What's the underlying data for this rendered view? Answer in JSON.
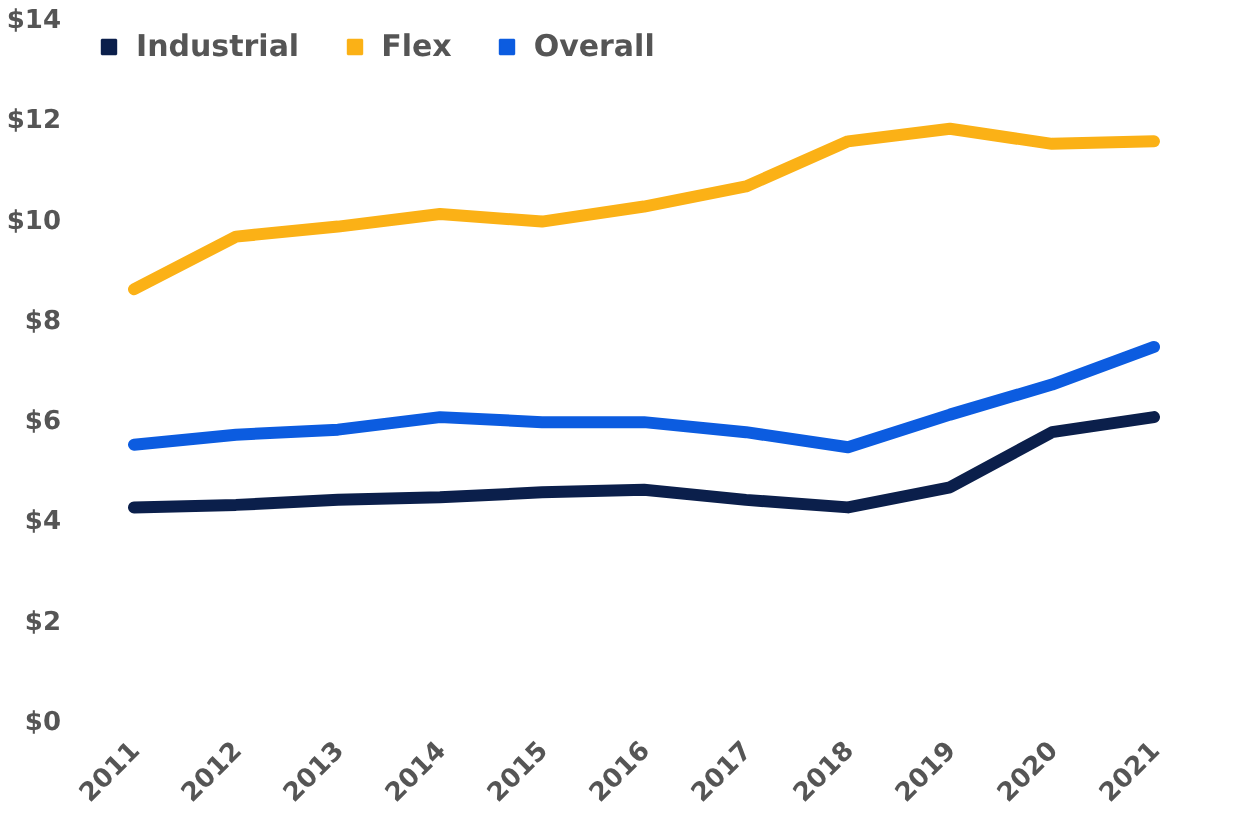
{
  "chart_data": {
    "type": "line",
    "categories": [
      "2011",
      "2012",
      "2013",
      "2014",
      "2015",
      "2016",
      "2017",
      "2018",
      "2019",
      "2020",
      "2021"
    ],
    "series": [
      {
        "name": "Industrial",
        "color": "#0b1f4b",
        "values": [
          4.3,
          4.35,
          4.45,
          4.5,
          4.6,
          4.65,
          4.45,
          4.3,
          4.7,
          5.8,
          6.1
        ]
      },
      {
        "name": "Flex",
        "color": "#fbb116",
        "values": [
          8.65,
          9.7,
          9.9,
          10.15,
          10.0,
          10.3,
          10.7,
          11.6,
          11.85,
          11.55,
          11.6
        ]
      },
      {
        "name": "Overall",
        "color": "#0c5ce0",
        "values": [
          5.55,
          5.75,
          5.85,
          6.1,
          6.0,
          6.0,
          5.8,
          5.5,
          6.15,
          6.75,
          7.5
        ]
      }
    ],
    "ylim": [
      0,
      14
    ],
    "yticks": [
      {
        "value": 0,
        "label": "$0"
      },
      {
        "value": 2,
        "label": "$2"
      },
      {
        "value": 4,
        "label": "$4"
      },
      {
        "value": 6,
        "label": "$6"
      },
      {
        "value": 8,
        "label": "$8"
      },
      {
        "value": 10,
        "label": "$10"
      },
      {
        "value": 12,
        "label": "$12"
      },
      {
        "value": 14,
        "label": "$14"
      }
    ],
    "grid": false,
    "legend": "top left",
    "marker": "none",
    "line_style": "solid"
  }
}
